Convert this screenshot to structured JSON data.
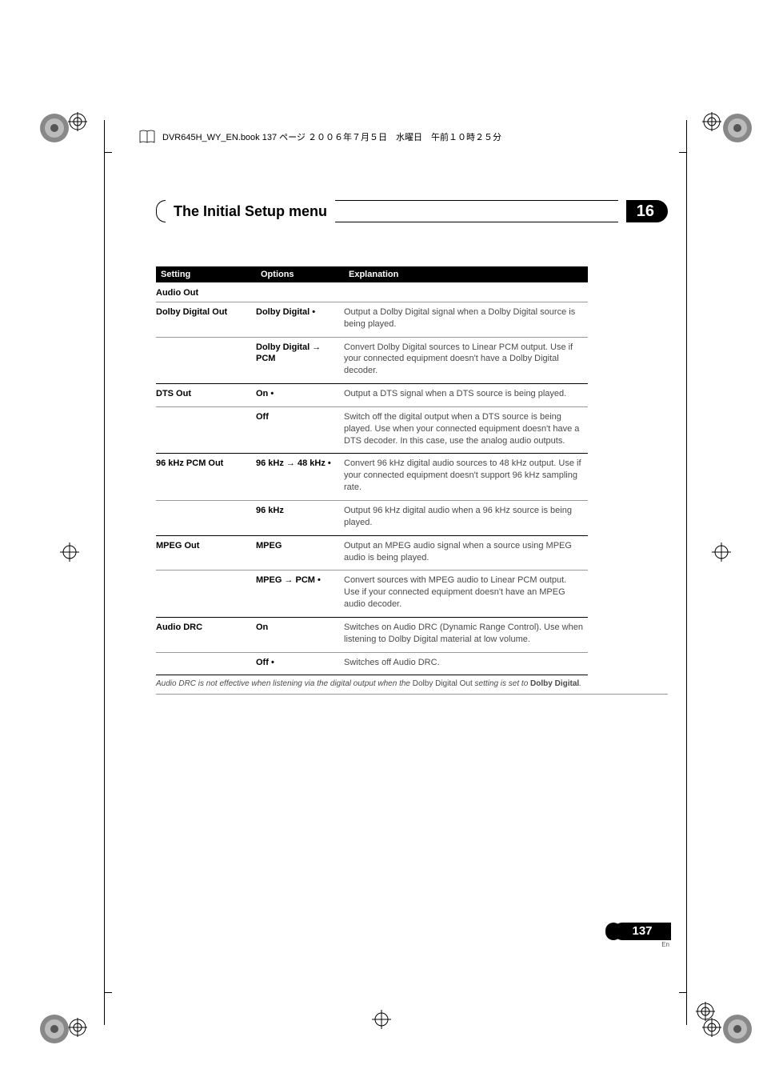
{
  "meta": {
    "book_header": "DVR645H_WY_EN.book 137 ページ ２００６年７月５日　水曜日　午前１０時２５分"
  },
  "title": {
    "text": "The Initial Setup menu",
    "chapter": "16"
  },
  "table": {
    "headers": [
      "Setting",
      "Options",
      "Explanation"
    ],
    "section": "Audio Out",
    "rows": [
      {
        "setting": "Dolby Digital Out",
        "option": "Dolby Digital •",
        "explanation": "Output a Dolby Digital signal when a Dolby Digital source is being played.",
        "divider": "thin"
      },
      {
        "setting": "",
        "option": "Dolby Digital → PCM",
        "explanation": "Convert Dolby Digital sources to Linear PCM output. Use if your connected equipment doesn't have a Dolby Digital decoder.",
        "divider": "thick"
      },
      {
        "setting": "DTS Out",
        "option": "On •",
        "explanation": "Output a DTS signal when a DTS source is being played.",
        "divider": "thin"
      },
      {
        "setting": "",
        "option": "Off",
        "explanation": "Switch off the digital output when a DTS source is being played. Use when your connected equipment doesn't have a DTS decoder. In this case, use the analog audio outputs.",
        "divider": "thick"
      },
      {
        "setting": "96 kHz PCM Out",
        "option": "96 kHz → 48 kHz •",
        "explanation": "Convert 96 kHz digital audio sources to 48 kHz output. Use if your connected equipment doesn't support 96 kHz sampling rate.",
        "divider": "thin"
      },
      {
        "setting": "",
        "option": "96 kHz",
        "explanation": "Output 96 kHz digital audio when a 96 kHz source is being played.",
        "divider": "thick"
      },
      {
        "setting": "MPEG Out",
        "option": "MPEG",
        "explanation": "Output an MPEG audio signal when a source using MPEG audio is being played.",
        "divider": "thin"
      },
      {
        "setting": "",
        "option": "MPEG → PCM •",
        "explanation": "Convert sources with MPEG audio to Linear PCM output. Use if your connected equipment doesn't have an MPEG audio decoder.",
        "divider": "thick"
      },
      {
        "setting": "Audio DRC",
        "option": "On",
        "explanation": "Switches on Audio DRC (Dynamic Range Control). Use when listening to Dolby Digital material at low volume.",
        "divider": "thin"
      },
      {
        "setting": "",
        "option": "Off •",
        "explanation": "Switches off Audio DRC.",
        "divider": "thick"
      }
    ],
    "footnote_pre": "Audio DRC is not effective when listening via the digital output when the ",
    "footnote_mid": "Dolby Digital Out",
    "footnote_mid2": " setting is set to ",
    "footnote_bold": "Dolby Digital",
    "footnote_end": "."
  },
  "page": {
    "number": "137",
    "lang": "En"
  },
  "colors": {
    "text_body": "#4a4a4a",
    "text_heading": "#000000",
    "header_bg": "#000000",
    "header_fg": "#ffffff",
    "page_bg": "#ffffff",
    "divider_thin": "#999999"
  }
}
